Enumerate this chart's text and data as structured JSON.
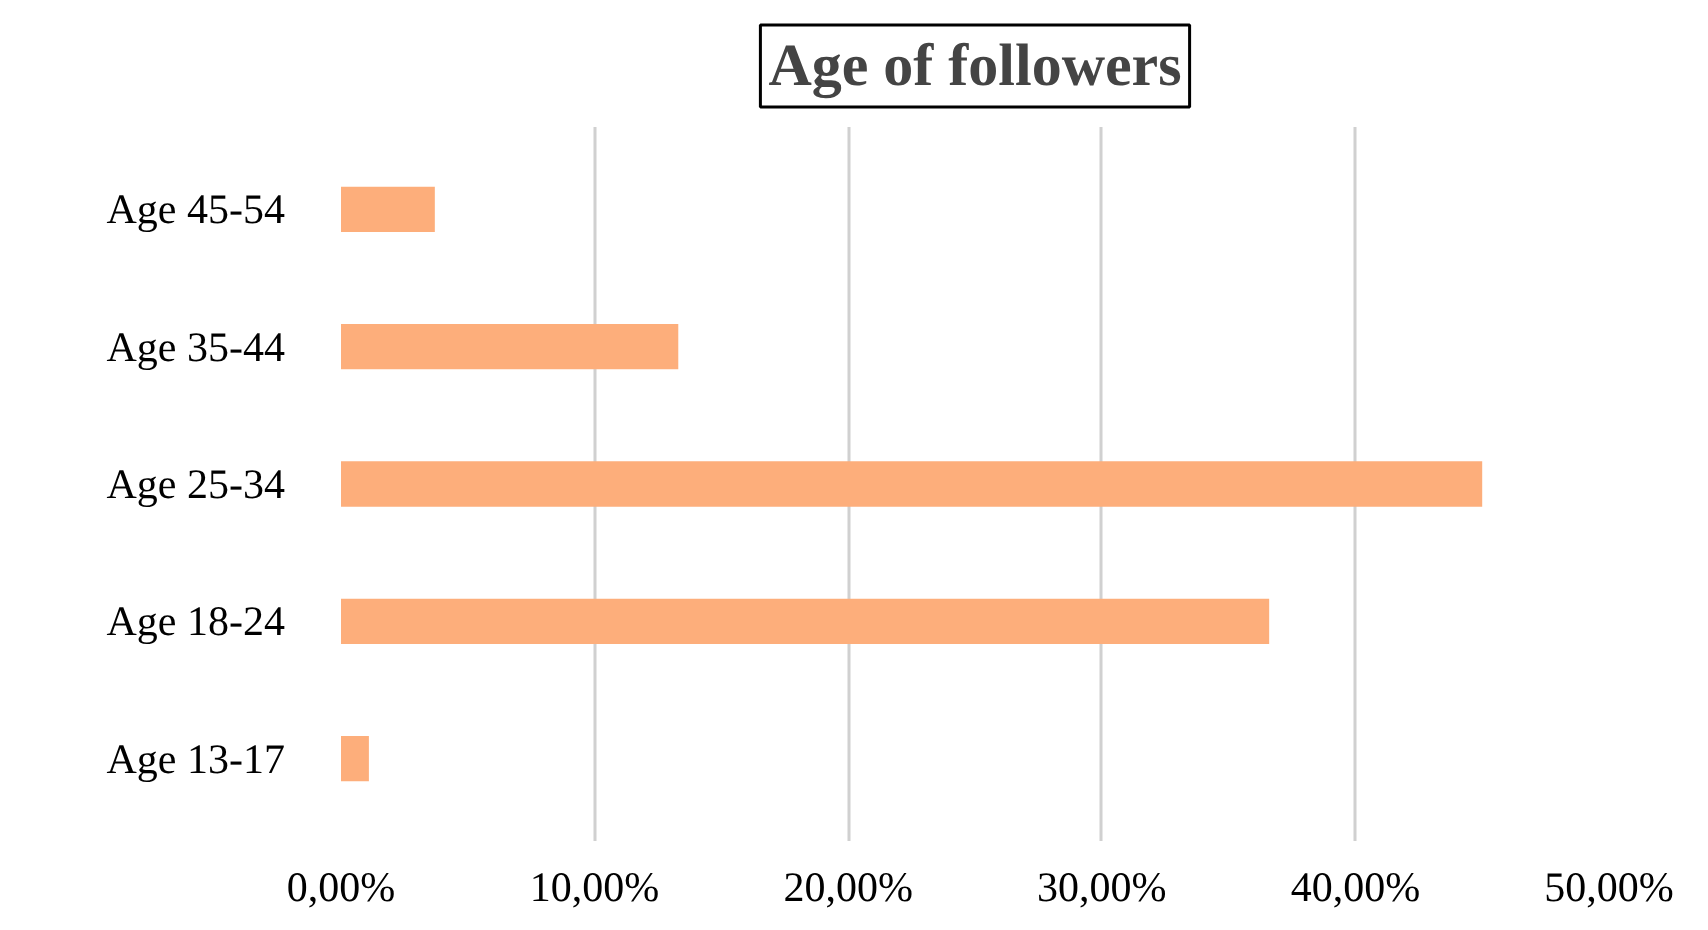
{
  "chart_data": {
    "type": "bar",
    "orientation": "horizontal",
    "title": "Age of followers",
    "categories": [
      "Age 45-54",
      "Age 35-44",
      "Age 25-34",
      "Age 18-24",
      "Age 13-17"
    ],
    "values": [
      3.7,
      13.3,
      45.0,
      36.6,
      1.1
    ],
    "color": "#fdae7b",
    "xlim": [
      0,
      50
    ],
    "xticks": [
      {
        "value": 0,
        "label": "0,00%"
      },
      {
        "value": 10,
        "label": "10,00%"
      },
      {
        "value": 20,
        "label": "20,00%"
      },
      {
        "value": 30,
        "label": "30,00%"
      },
      {
        "value": 40,
        "label": "40,00%"
      },
      {
        "value": 50,
        "label": "50,00%"
      }
    ],
    "grid": "x"
  }
}
